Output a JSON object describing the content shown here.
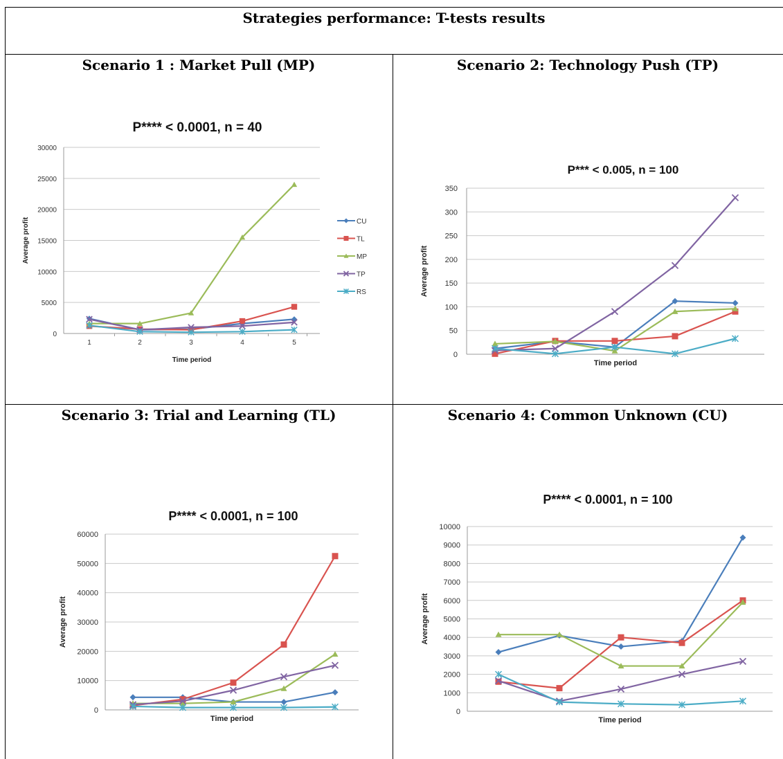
{
  "header": {
    "title": "Strategies performance: T-tests results"
  },
  "panels": [
    {
      "title": "Scenario 1 : Market Pull (MP)"
    },
    {
      "title": "Scenario 2: Technology Push (TP)"
    },
    {
      "title": "Scenario 3: Trial and Learning (TL)"
    },
    {
      "title": "Scenario 4: Common Unknown (CU)"
    }
  ],
  "colors": {
    "CU": "#4a7ebb",
    "TL": "#d9534f",
    "MP": "#9bbb59",
    "TP": "#8064a2",
    "RS": "#4bacc6"
  },
  "chart_data": [
    {
      "type": "line",
      "title": "P**** < 0.0001, n = 40",
      "xlabel": "Time period",
      "ylabel": "Average profit",
      "x": [
        1,
        2,
        3,
        4,
        5
      ],
      "xticks": [
        "1",
        "2",
        "3",
        "4",
        "5"
      ],
      "ylim": [
        0,
        30000
      ],
      "yticks": [
        0,
        5000,
        10000,
        15000,
        20000,
        25000,
        30000
      ],
      "legend": "right",
      "grid": true,
      "series": [
        {
          "name": "CU",
          "values": [
            2400,
            600,
            700,
            1600,
            2300
          ]
        },
        {
          "name": "TL",
          "values": [
            1200,
            700,
            600,
            2000,
            4300
          ]
        },
        {
          "name": "MP",
          "values": [
            1600,
            1600,
            3300,
            15500,
            24000
          ]
        },
        {
          "name": "TP",
          "values": [
            2300,
            600,
            1000,
            1200,
            1800
          ]
        },
        {
          "name": "RS",
          "values": [
            1300,
            300,
            200,
            300,
            600
          ]
        }
      ]
    },
    {
      "type": "line",
      "title": "P*** < 0.005, n = 100",
      "xlabel": "Time period",
      "ylabel": "Average profit",
      "x": [
        1,
        2,
        3,
        4,
        5
      ],
      "ylim": [
        0,
        350
      ],
      "yticks": [
        0,
        50,
        100,
        150,
        200,
        250,
        300,
        350
      ],
      "grid": true,
      "series": [
        {
          "name": "CU",
          "values": [
            12,
            27,
            15,
            112,
            108
          ]
        },
        {
          "name": "TL",
          "values": [
            1,
            28,
            28,
            38,
            90
          ]
        },
        {
          "name": "MP",
          "values": [
            22,
            27,
            7,
            90,
            96
          ]
        },
        {
          "name": "TP",
          "values": [
            8,
            12,
            90,
            187,
            330
          ]
        },
        {
          "name": "RS",
          "values": [
            12,
            1,
            15,
            1,
            33
          ]
        }
      ]
    },
    {
      "type": "line",
      "title": "P**** < 0.0001, n = 100",
      "xlabel": "Time period",
      "ylabel": "Average profit",
      "x": [
        1,
        2,
        3,
        4,
        5
      ],
      "ylim": [
        0,
        60000
      ],
      "yticks": [
        0,
        10000,
        20000,
        30000,
        40000,
        50000,
        60000
      ],
      "grid": true,
      "series": [
        {
          "name": "CU",
          "values": [
            4300,
            4300,
            2700,
            2700,
            6000
          ]
        },
        {
          "name": "TL",
          "values": [
            1500,
            3600,
            9300,
            22300,
            52500
          ]
        },
        {
          "name": "MP",
          "values": [
            2200,
            2200,
            2700,
            7300,
            19000
          ]
        },
        {
          "name": "TP",
          "values": [
            1800,
            3000,
            6700,
            11300,
            15200
          ]
        },
        {
          "name": "RS",
          "values": [
            1200,
            800,
            800,
            800,
            1000
          ]
        }
      ]
    },
    {
      "type": "line",
      "title": "P**** < 0.0001, n = 100",
      "xlabel": "Time period",
      "ylabel": "Average profit",
      "x": [
        1,
        2,
        3,
        4,
        5
      ],
      "ylim": [
        0,
        10000
      ],
      "yticks": [
        0,
        1000,
        2000,
        3000,
        4000,
        5000,
        6000,
        7000,
        8000,
        9000,
        10000
      ],
      "grid": true,
      "series": [
        {
          "name": "CU",
          "values": [
            3200,
            4100,
            3500,
            3800,
            9400
          ]
        },
        {
          "name": "TL",
          "values": [
            1600,
            1250,
            4000,
            3700,
            6000
          ]
        },
        {
          "name": "MP",
          "values": [
            4150,
            4150,
            2450,
            2450,
            5900
          ]
        },
        {
          "name": "TP",
          "values": [
            1650,
            550,
            1200,
            2000,
            2700
          ]
        },
        {
          "name": "RS",
          "values": [
            2000,
            500,
            400,
            350,
            550
          ]
        }
      ]
    }
  ]
}
